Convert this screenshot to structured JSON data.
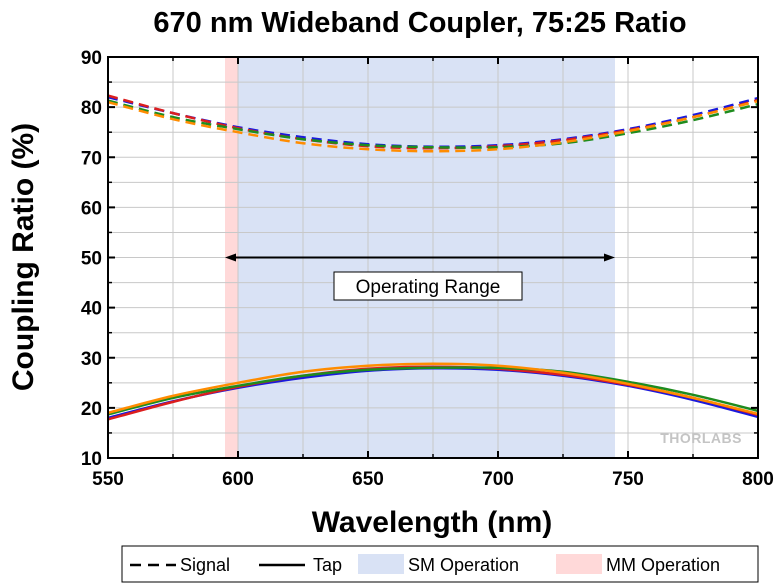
{
  "chart_data": {
    "type": "line",
    "title": "670 nm Wideband Coupler, 75:25 Ratio",
    "xlabel": "Wavelength (nm)",
    "ylabel": "Coupling Ratio (%)",
    "xlim": [
      550,
      800
    ],
    "ylim": [
      10,
      90
    ],
    "x_ticks": [
      550,
      600,
      650,
      700,
      750,
      800
    ],
    "y_ticks": [
      10,
      20,
      30,
      40,
      50,
      60,
      70,
      80,
      90
    ],
    "grid": true,
    "x": [
      550,
      575,
      600,
      625,
      650,
      675,
      700,
      725,
      750,
      775,
      800
    ],
    "series": [
      {
        "group": "Signal",
        "style": "dashed",
        "color": "#1a1adc",
        "values": [
          82.0,
          78.8,
          76.0,
          74.0,
          72.6,
          72.1,
          72.4,
          73.6,
          75.6,
          78.4,
          81.8
        ]
      },
      {
        "group": "Signal",
        "style": "dashed",
        "color": "#dc1e1e",
        "values": [
          82.3,
          78.8,
          75.8,
          73.6,
          72.2,
          71.8,
          72.2,
          73.4,
          75.4,
          78.0,
          81.4
        ]
      },
      {
        "group": "Signal",
        "style": "dashed",
        "color": "#1e8c1e",
        "values": [
          81.3,
          78.0,
          75.6,
          73.6,
          72.4,
          72.0,
          72.0,
          72.8,
          74.8,
          77.4,
          80.6
        ]
      },
      {
        "group": "Signal",
        "style": "dashed",
        "color": "#ff8c00",
        "values": [
          81.0,
          77.6,
          75.0,
          72.8,
          71.6,
          71.2,
          71.6,
          73.0,
          75.2,
          78.0,
          81.2
        ]
      },
      {
        "group": "Tap",
        "style": "solid",
        "color": "#1a1adc",
        "values": [
          18.0,
          21.3,
          24.0,
          26.0,
          27.4,
          27.9,
          27.6,
          26.4,
          24.4,
          21.6,
          18.2
        ]
      },
      {
        "group": "Tap",
        "style": "solid",
        "color": "#dc1e1e",
        "values": [
          17.7,
          21.2,
          24.2,
          26.4,
          27.8,
          28.2,
          27.8,
          26.6,
          24.6,
          22.0,
          18.6
        ]
      },
      {
        "group": "Tap",
        "style": "solid",
        "color": "#1e8c1e",
        "values": [
          18.7,
          22.0,
          24.4,
          26.4,
          27.6,
          28.0,
          28.0,
          27.2,
          25.2,
          22.6,
          19.4
        ]
      },
      {
        "group": "Tap",
        "style": "solid",
        "color": "#ff8c00",
        "values": [
          19.0,
          22.4,
          25.0,
          27.2,
          28.4,
          28.8,
          28.4,
          27.0,
          24.8,
          22.0,
          18.8
        ]
      }
    ],
    "bands": [
      {
        "name": "MM Operation",
        "from": 595,
        "to": 600,
        "color": "#ffd9d9"
      },
      {
        "name": "SM Operation",
        "from": 600,
        "to": 745,
        "color": "#d9e2f5"
      }
    ],
    "annotation": {
      "text": "Operating Range",
      "from": 595,
      "to": 745,
      "y": 50
    },
    "legend": {
      "placement": "bottom",
      "entries": [
        {
          "label": "Signal",
          "kind": "dashed-line"
        },
        {
          "label": "Tap",
          "kind": "solid-line"
        },
        {
          "label": "SM Operation",
          "kind": "band",
          "color": "#d9e2f5"
        },
        {
          "label": "MM Operation",
          "kind": "band",
          "color": "#ffd9d9"
        }
      ]
    },
    "watermark": "THORLABS"
  }
}
